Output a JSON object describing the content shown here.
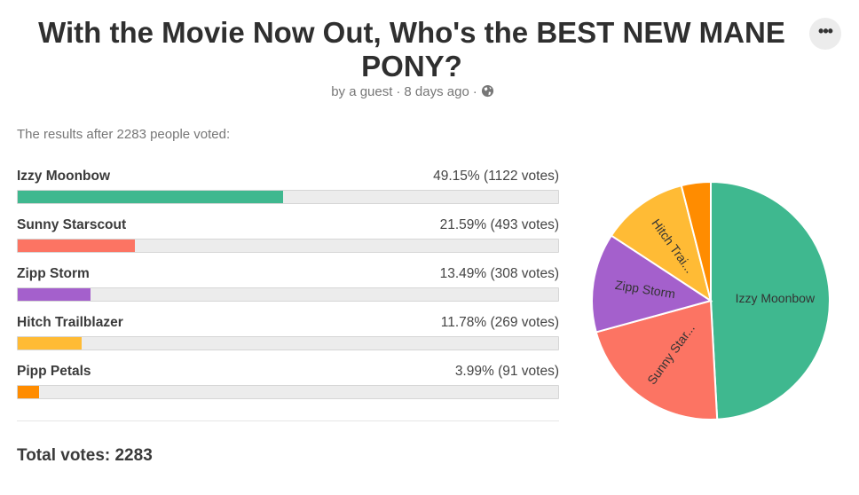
{
  "header": {
    "title": "With the Movie Now Out, Who's the BEST NEW MANE PONY?",
    "author": "by a guest",
    "time": "8 days ago",
    "menu_label": "•••"
  },
  "intro": "The results after 2283 people voted:",
  "total_label": "Total votes: 2283",
  "chart_data": {
    "type": "pie",
    "total_votes": 2283,
    "categories": [
      "Izzy Moonbow",
      "Sunny Starscout",
      "Zipp Storm",
      "Hitch Trailblazer",
      "Pipp Petals"
    ],
    "values": [
      1122,
      493,
      308,
      269,
      91
    ],
    "percents": [
      "49.15%",
      "21.59%",
      "13.49%",
      "11.78%",
      "3.99%"
    ],
    "stat_labels": [
      "49.15% (1122 votes)",
      "21.59% (493 votes)",
      "13.49% (308 votes)",
      "11.78% (269 votes)",
      "3.99% (91 votes)"
    ],
    "slice_labels": [
      "Izzy Moonbow",
      "Sunny Star...",
      "Zipp Storm",
      "Hitch Trai...",
      ""
    ],
    "colors": [
      "#3fb88f",
      "#fc7463",
      "#a460cc",
      "#ffbb35",
      "#ff8c00"
    ]
  }
}
